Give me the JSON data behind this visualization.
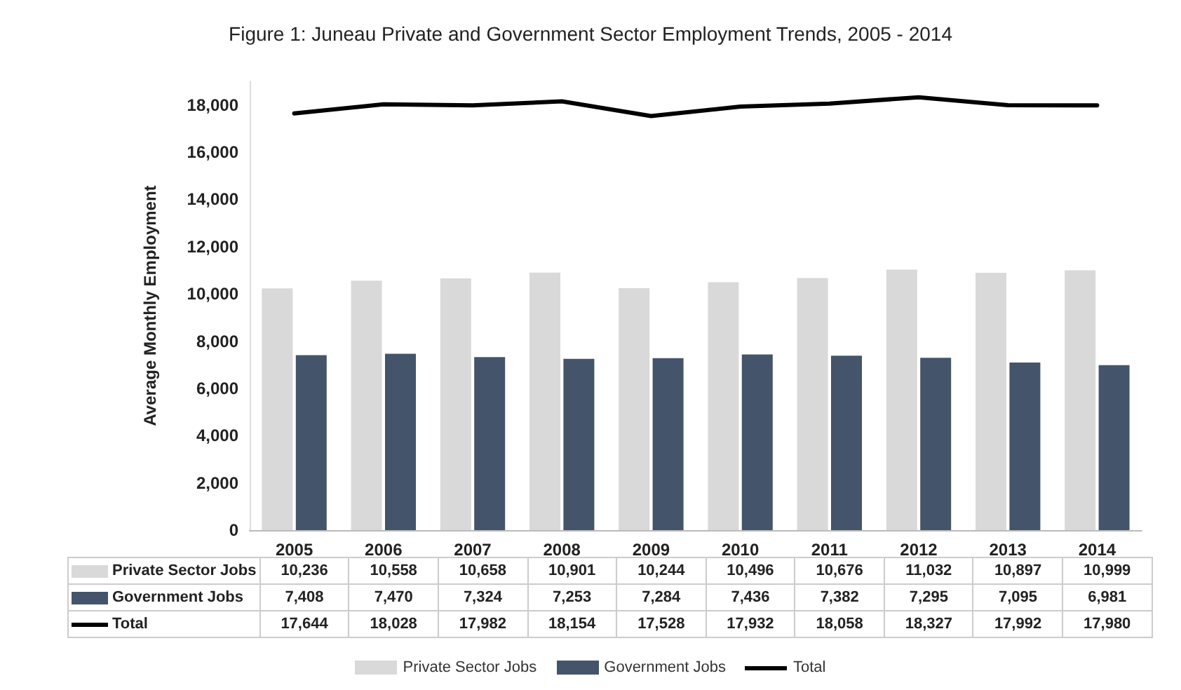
{
  "chart_data": {
    "type": "bar",
    "title": "Figure 1: Juneau Private and Government Sector Employment Trends, 2005 - 2014",
    "ylabel": "Average Monthly Employment",
    "categories": [
      "2005",
      "2006",
      "2007",
      "2008",
      "2009",
      "2010",
      "2011",
      "2012",
      "2013",
      "2014"
    ],
    "series": [
      {
        "name": "Private Sector Jobs",
        "color": "#d9d9d9",
        "values": [
          10236,
          10558,
          10658,
          10901,
          10244,
          10496,
          10676,
          11032,
          10897,
          10999
        ],
        "value_labels": [
          "10,236",
          "10,558",
          "10,658",
          "10,901",
          "10,244",
          "10,496",
          "10,676",
          "11,032",
          "10,897",
          "10,999"
        ]
      },
      {
        "name": "Government Jobs",
        "color": "#44546a",
        "values": [
          7408,
          7470,
          7324,
          7253,
          7284,
          7436,
          7382,
          7295,
          7095,
          6981
        ],
        "value_labels": [
          "7,408",
          "7,470",
          "7,324",
          "7,253",
          "7,284",
          "7,436",
          "7,382",
          "7,295",
          "7,095",
          "6,981"
        ]
      },
      {
        "name": "Total",
        "type": "line",
        "color": "#000000",
        "values": [
          17644,
          18028,
          17982,
          18154,
          17528,
          17932,
          18058,
          18327,
          17992,
          17980
        ],
        "value_labels": [
          "17,644",
          "18,028",
          "17,982",
          "18,154",
          "17,528",
          "17,932",
          "18,058",
          "18,327",
          "17,992",
          "17,980"
        ]
      }
    ],
    "ylim": [
      0,
      19000
    ],
    "yticks": [
      {
        "value": 0,
        "label": "0"
      },
      {
        "value": 2000,
        "label": "2,000"
      },
      {
        "value": 4000,
        "label": "4,000"
      },
      {
        "value": 6000,
        "label": "6,000"
      },
      {
        "value": 8000,
        "label": "8,000"
      },
      {
        "value": 10000,
        "label": "10,000"
      },
      {
        "value": 12000,
        "label": "12,000"
      },
      {
        "value": 14000,
        "label": "14,000"
      },
      {
        "value": 16000,
        "label": "16,000"
      },
      {
        "value": 18000,
        "label": "18,000"
      }
    ],
    "legend": "bottom",
    "marker": "none"
  }
}
